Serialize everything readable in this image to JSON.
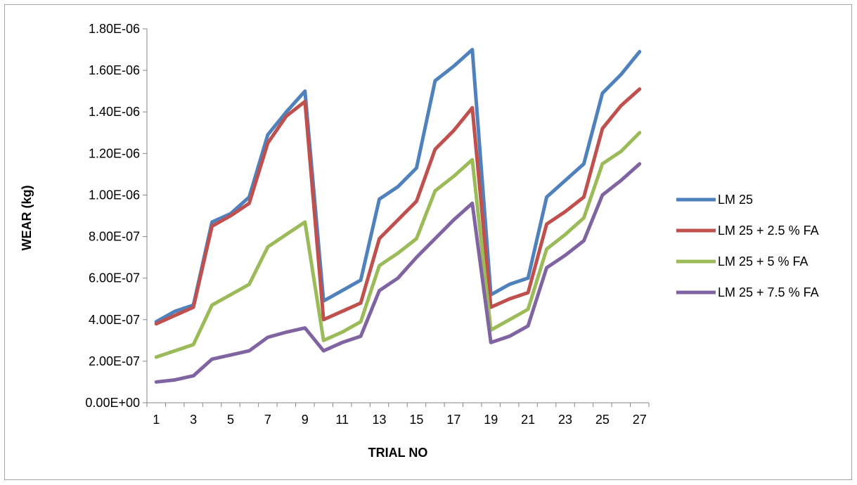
{
  "chart_data": {
    "type": "line",
    "title": "",
    "xlabel": "TRIAL NO",
    "ylabel": "WEAR (kg)",
    "x": [
      1,
      2,
      3,
      4,
      5,
      6,
      7,
      8,
      9,
      10,
      11,
      12,
      13,
      14,
      15,
      16,
      17,
      18,
      19,
      20,
      21,
      22,
      23,
      24,
      25,
      26,
      27
    ],
    "x_tick_labels": [
      "1",
      "3",
      "5",
      "7",
      "9",
      "11",
      "13",
      "15",
      "17",
      "19",
      "21",
      "23",
      "25",
      "27"
    ],
    "ylim": [
      0,
      1.8e-06
    ],
    "y_tick_values": [
      0,
      2e-07,
      4e-07,
      6e-07,
      8e-07,
      1e-06,
      1.2e-06,
      1.4e-06,
      1.6e-06,
      1.8e-06
    ],
    "y_tick_labels": [
      "0.00E+00",
      "2.00E-07",
      "4.00E-07",
      "6.00E-07",
      "8.00E-07",
      "1.00E-06",
      "1.20E-06",
      "1.40E-06",
      "1.60E-06",
      "1.80E-06"
    ],
    "grid": false,
    "legend_position": "right",
    "series": [
      {
        "name": "LM 25",
        "color": "#4f81bd",
        "values": [
          3.9e-07,
          4.4e-07,
          4.7e-07,
          8.7e-07,
          9.1e-07,
          9.9e-07,
          1.29e-06,
          1.4e-06,
          1.5e-06,
          4.9e-07,
          5.4e-07,
          5.9e-07,
          9.8e-07,
          1.04e-06,
          1.13e-06,
          1.55e-06,
          1.62e-06,
          1.7e-06,
          5.2e-07,
          5.7e-07,
          6e-07,
          9.9e-07,
          1.07e-06,
          1.15e-06,
          1.49e-06,
          1.58e-06,
          1.69e-06
        ]
      },
      {
        "name": "LM 25 + 2.5 % FA",
        "color": "#c0504d",
        "values": [
          3.8e-07,
          4.2e-07,
          4.6e-07,
          8.5e-07,
          9e-07,
          9.6e-07,
          1.25e-06,
          1.38e-06,
          1.45e-06,
          4e-07,
          4.4e-07,
          4.8e-07,
          7.9e-07,
          8.8e-07,
          9.7e-07,
          1.22e-06,
          1.31e-06,
          1.42e-06,
          4.6e-07,
          5e-07,
          5.3e-07,
          8.6e-07,
          9.2e-07,
          9.9e-07,
          1.32e-06,
          1.43e-06,
          1.51e-06
        ]
      },
      {
        "name": "LM 25 + 5 % FA",
        "color": "#9bbb59",
        "values": [
          2.2e-07,
          2.5e-07,
          2.8e-07,
          4.7e-07,
          5.2e-07,
          5.7e-07,
          7.5e-07,
          8.1e-07,
          8.7e-07,
          3e-07,
          3.4e-07,
          3.9e-07,
          6.6e-07,
          7.2e-07,
          7.9e-07,
          1.02e-06,
          1.09e-06,
          1.17e-06,
          3.5e-07,
          4e-07,
          4.5e-07,
          7.4e-07,
          8.1e-07,
          8.9e-07,
          1.15e-06,
          1.21e-06,
          1.3e-06
        ]
      },
      {
        "name": "LM 25 + 7.5 % FA",
        "color": "#8064a2",
        "values": [
          1e-07,
          1.1e-07,
          1.3e-07,
          2.1e-07,
          2.3e-07,
          2.5e-07,
          3.15e-07,
          3.4e-07,
          3.6e-07,
          2.5e-07,
          2.9e-07,
          3.2e-07,
          5.4e-07,
          6e-07,
          7e-07,
          7.9e-07,
          8.8e-07,
          9.6e-07,
          2.9e-07,
          3.2e-07,
          3.7e-07,
          6.5e-07,
          7.1e-07,
          7.8e-07,
          1e-06,
          1.07e-06,
          1.15e-06
        ]
      }
    ]
  }
}
